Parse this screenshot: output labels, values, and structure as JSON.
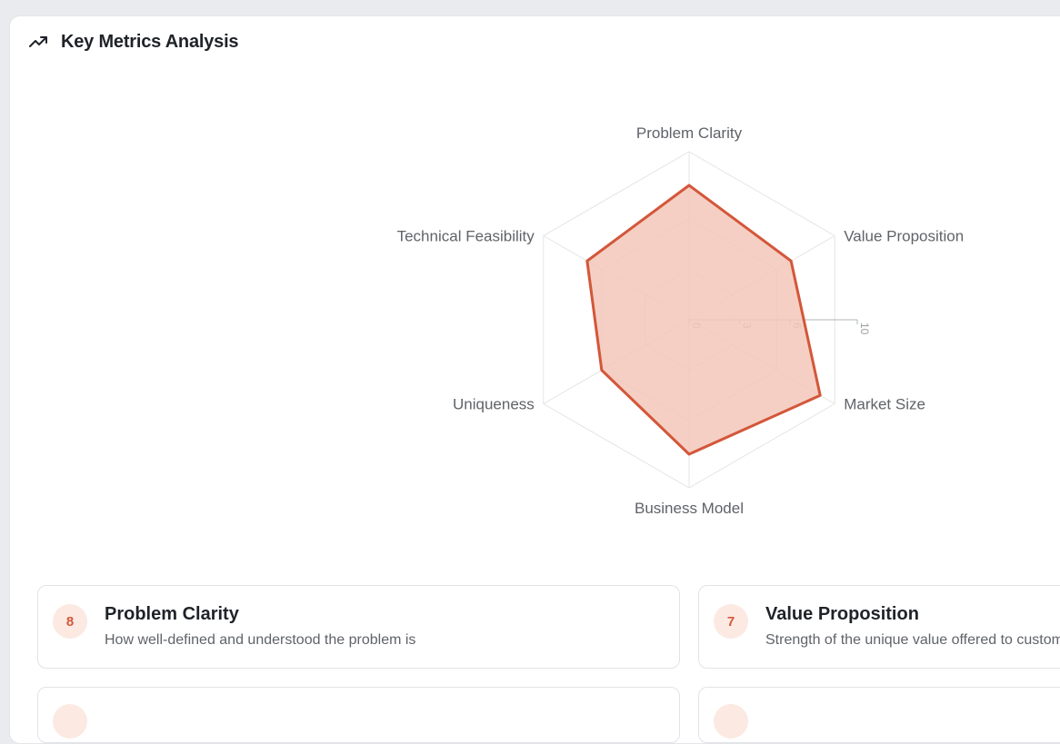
{
  "header": {
    "title": "Key Metrics Analysis",
    "icon": "trending-up-icon"
  },
  "colors": {
    "accent": "#d3573a",
    "accent_fill": "#f3c7ba",
    "grid": "#e5e5e5",
    "badge_bg": "#fbe9e2"
  },
  "chart_data": {
    "type": "radar",
    "axes": [
      "Problem Clarity",
      "Value Proposition",
      "Market Size",
      "Business Model",
      "Uniqueness",
      "Technical Feasibility"
    ],
    "values": [
      8,
      7,
      9,
      8,
      6,
      7
    ],
    "range": [
      0,
      10
    ],
    "ticks": [
      0,
      3,
      6,
      10
    ],
    "grid": true
  },
  "metrics": [
    {
      "score": "8",
      "title": "Problem Clarity",
      "description": "How well-defined and understood the problem is"
    },
    {
      "score": "7",
      "title": "Value Proposition",
      "description": "Strength of the unique value offered to customers"
    },
    {
      "score": "",
      "title": "",
      "description": ""
    },
    {
      "score": "",
      "title": "",
      "description": ""
    }
  ]
}
